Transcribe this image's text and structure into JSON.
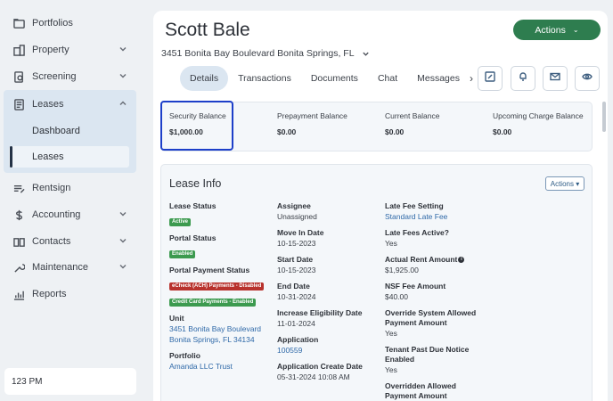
{
  "sidebar": {
    "items": [
      {
        "label": "Portfolios",
        "icon": "folder-icon"
      },
      {
        "label": "Property",
        "icon": "building-icon"
      },
      {
        "label": "Screening",
        "icon": "screening-icon"
      },
      {
        "label": "Leases",
        "icon": "document-icon"
      },
      {
        "label": "Rentsign",
        "icon": "rentsign-icon"
      },
      {
        "label": "Accounting",
        "icon": "dollar-icon"
      },
      {
        "label": "Contacts",
        "icon": "book-icon"
      },
      {
        "label": "Maintenance",
        "icon": "wrench-icon"
      },
      {
        "label": "Reports",
        "icon": "chart-icon"
      }
    ],
    "lease_sub": {
      "dashboard": "Dashboard",
      "leases": "Leases"
    },
    "user_label": "123 PM"
  },
  "header": {
    "name": "Scott Bale",
    "address": "3451 Bonita Bay Boulevard Bonita Springs, FL",
    "actions_label": "Actions"
  },
  "tabs": [
    "Details",
    "Transactions",
    "Documents",
    "Chat",
    "Messages"
  ],
  "balances": {
    "security": {
      "label": "Security Balance",
      "value": "$1,000.00"
    },
    "prepayment": {
      "label": "Prepayment Balance",
      "value": "$0.00"
    },
    "current": {
      "label": "Current Balance",
      "value": "$0.00"
    },
    "upcoming": {
      "label": "Upcoming Charge Balance",
      "value": "$0.00"
    }
  },
  "lease_info": {
    "title": "Lease Info",
    "actions_label": "Actions",
    "col1": {
      "lease_status_label": "Lease Status",
      "lease_status_badge": "Active",
      "portal_status_label": "Portal Status",
      "portal_status_badge": "Enabled",
      "portal_payment_label": "Portal Payment Status",
      "echeck_badge": "eCheck (ACH) Payments - Disabled",
      "credit_badge": "Credit Card Payments - Enabled",
      "unit_label": "Unit",
      "unit_line1": "3451 Bonita Bay Boulevard",
      "unit_line2": "Bonita Springs, FL 34134",
      "portfolio_label": "Portfolio",
      "portfolio_value": "Amanda LLC Trust"
    },
    "col2": {
      "assignee_label": "Assignee",
      "assignee_value": "Unassigned",
      "move_in_label": "Move In Date",
      "move_in_value": "10-15-2023",
      "start_label": "Start Date",
      "start_value": "10-15-2023",
      "end_label": "End Date",
      "end_value": "10-31-2024",
      "increase_label": "Increase Eligibility Date",
      "increase_value": "11-01-2024",
      "application_label": "Application",
      "application_value": "100559",
      "app_create_label": "Application Create Date",
      "app_create_value": "05-31-2024 10:08 AM"
    },
    "col3": {
      "late_fee_setting_label": "Late Fee Setting",
      "late_fee_setting_value": "Standard Late Fee",
      "late_fees_active_label": "Late Fees Active?",
      "late_fees_active_value": "Yes",
      "actual_rent_label": "Actual Rent Amount",
      "actual_rent_value": "$1,925.00",
      "nsf_label": "NSF Fee Amount",
      "nsf_value": "$40.00",
      "override_label_1": "Override System Allowed",
      "override_label_2": "Payment Amount",
      "override_value": "Yes",
      "tenant_past_due_label_1": "Tenant Past Due Notice",
      "tenant_past_due_label_2": "Enabled",
      "tenant_past_due_value": "Yes",
      "overridden_label_1": "Overridden Allowed",
      "overridden_label_2": "Payment Amount"
    }
  },
  "colors": {
    "accent_green": "#2e7d4f",
    "highlight_blue": "#1d3fc9",
    "link": "#2f69a8"
  }
}
